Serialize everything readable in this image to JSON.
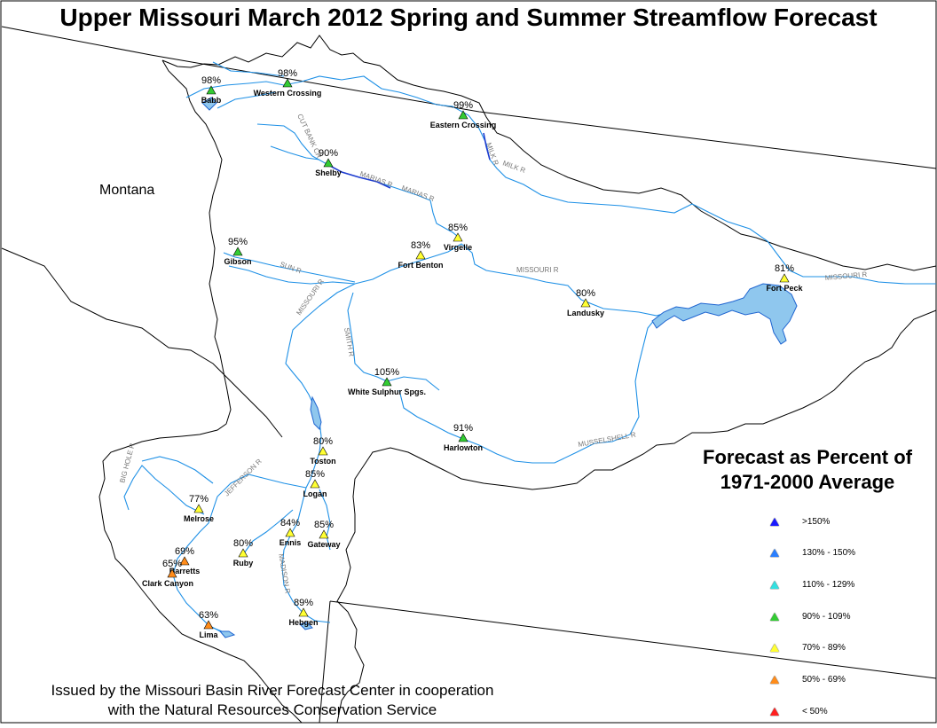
{
  "title": "Upper Missouri March 2012 Spring and Summer Streamflow Forecast",
  "state_label": "Montana",
  "legend": {
    "title_line1": "Forecast as Percent of",
    "title_line2": "1971-2000 Average",
    "items": [
      {
        "label": ">150%",
        "color": "#1a1aff"
      },
      {
        "label": "130% - 150%",
        "color": "#2a7fff"
      },
      {
        "label": "110% - 129%",
        "color": "#33e0e0"
      },
      {
        "label": "90% - 109%",
        "color": "#33cc33"
      },
      {
        "label": "70% - 89%",
        "color": "#ffff33"
      },
      {
        "label": "50% - 69%",
        "color": "#ff8c1a"
      },
      {
        "label": "< 50%",
        "color": "#ff2020"
      }
    ]
  },
  "credit_line1": "Issued by the Missouri Basin River Forecast Center in cooperation",
  "credit_line2": "with the Natural Resources Conservation Service",
  "stations": [
    {
      "name": "Babb",
      "percent": "98%",
      "category": "90% - 109%"
    },
    {
      "name": "Western Crossing",
      "percent": "98%",
      "category": "90% - 109%"
    },
    {
      "name": "Eastern Crossing",
      "percent": "99%",
      "category": "90% - 109%"
    },
    {
      "name": "Shelby",
      "percent": "90%",
      "category": "90% - 109%"
    },
    {
      "name": "Virgelle",
      "percent": "85%",
      "category": "70% - 89%"
    },
    {
      "name": "Fort Benton",
      "percent": "83%",
      "category": "70% - 89%"
    },
    {
      "name": "Gibson",
      "percent": "95%",
      "category": "90% - 109%"
    },
    {
      "name": "Fort Peck",
      "percent": "81%",
      "category": "70% - 89%"
    },
    {
      "name": "Landusky",
      "percent": "80%",
      "category": "70% - 89%"
    },
    {
      "name": "White Sulphur Spgs.",
      "percent": "105%",
      "category": "90% - 109%"
    },
    {
      "name": "Harlowton",
      "percent": "91%",
      "category": "90% - 109%"
    },
    {
      "name": "Toston",
      "percent": "80%",
      "category": "70% - 89%"
    },
    {
      "name": "Logan",
      "percent": "85%",
      "category": "70% - 89%"
    },
    {
      "name": "Melrose",
      "percent": "77%",
      "category": "70% - 89%"
    },
    {
      "name": "Ennis",
      "percent": "84%",
      "category": "70% - 89%"
    },
    {
      "name": "Gateway",
      "percent": "85%",
      "category": "70% - 89%"
    },
    {
      "name": "Ruby",
      "percent": "80%",
      "category": "70% - 89%"
    },
    {
      "name": "Barretts",
      "percent": "69%",
      "category": "50% - 69%"
    },
    {
      "name": "Clark Canyon",
      "percent": "65%",
      "category": "50% - 69%"
    },
    {
      "name": "Lima",
      "percent": "63%",
      "category": "50% - 69%"
    },
    {
      "name": "Hebgen",
      "percent": "89%",
      "category": "70% - 89%"
    }
  ],
  "river_labels": [
    "CUT BANK CR",
    "MARIAS R",
    "MARIAS R",
    "MILK R",
    "MILK R",
    "SUN R",
    "MISSOURI R",
    "MISSOURI R",
    "MISSOURI R",
    "SMITH R",
    "MUSSELSHELL R",
    "JEFFERSON R",
    "BIG HOLE R",
    "MADISON R"
  ]
}
